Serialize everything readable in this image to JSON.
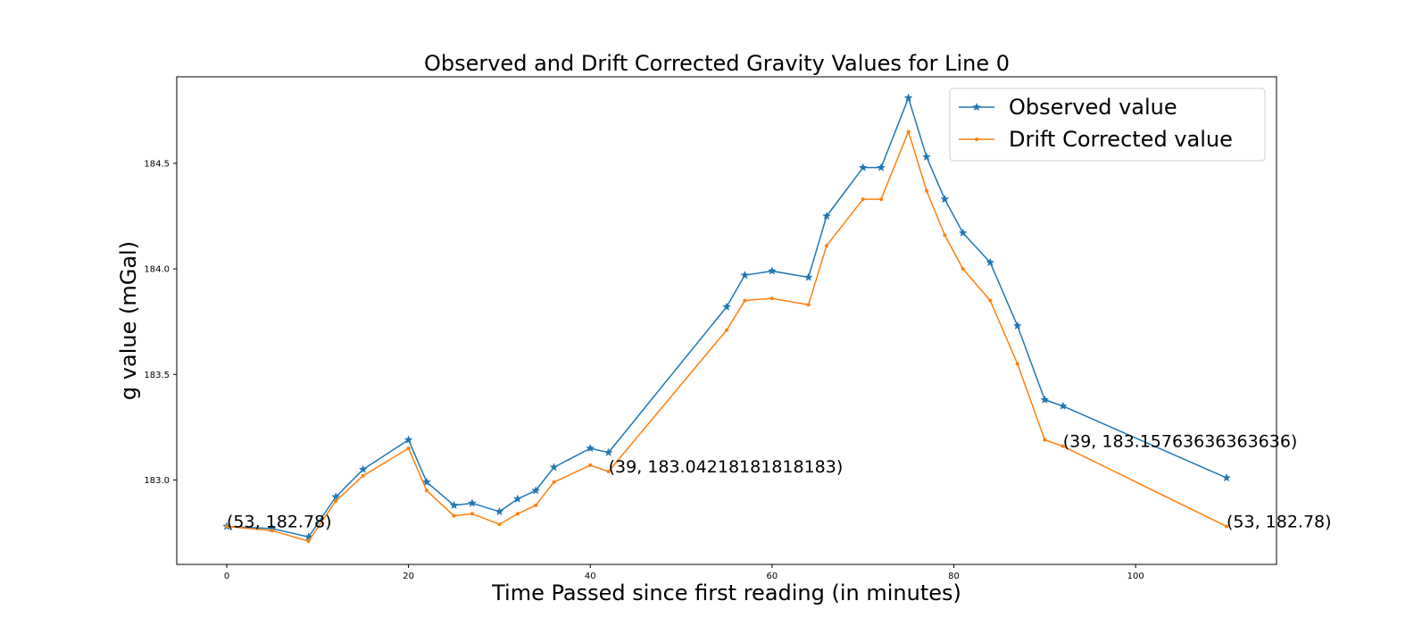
{
  "chart_data": {
    "type": "line",
    "title": "Observed and Drift Corrected Gravity Values for Line 0",
    "xlabel": "Time Passed since first reading (in minutes)",
    "ylabel": "g value (mGal)",
    "xlim": [
      -5.5,
      115.5
    ],
    "ylim": [
      182.6,
      184.91
    ],
    "xticks": [
      0,
      20,
      40,
      60,
      80,
      100
    ],
    "yticks": [
      183.0,
      183.5,
      184.0,
      184.5
    ],
    "xtick_labels": [
      "0",
      "20",
      "40",
      "60",
      "80",
      "100"
    ],
    "ytick_labels": [
      "183.0",
      "183.5",
      "184.0",
      "184.5"
    ],
    "grid": false,
    "legend_position": "top-right",
    "series": [
      {
        "name": "Observed value",
        "color": "#1f77b4",
        "marker": "star",
        "x": [
          0,
          5,
          9,
          12,
          15,
          20,
          22,
          25,
          27,
          30,
          32,
          34,
          36,
          40,
          42,
          55,
          57,
          60,
          64,
          66,
          70,
          72,
          75,
          77,
          79,
          81,
          84,
          87,
          90,
          92,
          110
        ],
        "y": [
          182.78,
          182.77,
          182.73,
          182.92,
          183.05,
          183.19,
          182.99,
          182.88,
          182.89,
          182.85,
          182.91,
          182.95,
          183.06,
          183.15,
          183.13,
          183.82,
          183.97,
          183.99,
          183.96,
          184.25,
          184.48,
          184.48,
          184.81,
          184.53,
          184.33,
          184.17,
          184.03,
          183.73,
          183.38,
          183.35,
          183.01
        ]
      },
      {
        "name": "Drift Corrected value",
        "color": "#ff7f0e",
        "marker": "point",
        "x": [
          0,
          5,
          9,
          12,
          15,
          20,
          22,
          25,
          27,
          30,
          32,
          34,
          36,
          40,
          42,
          55,
          57,
          60,
          64,
          66,
          70,
          72,
          75,
          77,
          79,
          81,
          84,
          87,
          90,
          92,
          110
        ],
        "y": [
          182.78,
          182.76,
          182.71,
          182.9,
          183.02,
          183.15,
          182.95,
          182.83,
          182.84,
          182.79,
          182.84,
          182.88,
          182.99,
          183.07,
          183.04,
          183.71,
          183.85,
          183.86,
          183.83,
          184.11,
          184.33,
          184.33,
          184.65,
          184.37,
          184.16,
          184.0,
          183.85,
          183.55,
          183.19,
          183.16,
          182.78
        ]
      }
    ],
    "annotations": [
      {
        "text": "(53, 182.78)",
        "x": 0,
        "y": 182.78
      },
      {
        "text": "(39, 183.04218181818183)",
        "x": 42,
        "y": 183.04
      },
      {
        "text": "(39, 183.15763636363636)",
        "x": 92,
        "y": 183.16
      },
      {
        "text": "(53, 182.78)",
        "x": 110,
        "y": 182.78
      }
    ]
  }
}
